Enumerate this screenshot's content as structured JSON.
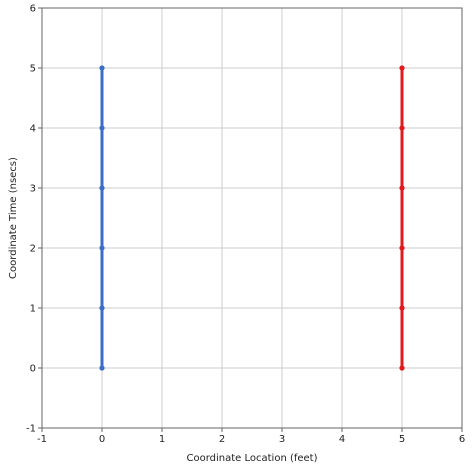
{
  "chart_data": {
    "type": "line",
    "xlabel": "Coordinate Location (feet)",
    "ylabel": "Coordinate Time (nsecs)",
    "xlim": [
      -1,
      6
    ],
    "ylim": [
      -1,
      6
    ],
    "x_ticks": [
      "-1",
      "0",
      "1",
      "2",
      "3",
      "4",
      "5",
      "6"
    ],
    "y_ticks": [
      "-1",
      "0",
      "1",
      "2",
      "3",
      "4",
      "5",
      "6"
    ],
    "grid": true,
    "legend": "none",
    "series": [
      {
        "color": "#3a6fc4",
        "points": [
          [
            0,
            0
          ],
          [
            0,
            1
          ],
          [
            0,
            2
          ],
          [
            0,
            3
          ],
          [
            0,
            4
          ],
          [
            0,
            5
          ]
        ]
      },
      {
        "color": "#e31a1c",
        "points": [
          [
            5,
            0
          ],
          [
            5,
            1
          ],
          [
            5,
            2
          ],
          [
            5,
            3
          ],
          [
            5,
            4
          ],
          [
            5,
            5
          ]
        ]
      }
    ]
  }
}
